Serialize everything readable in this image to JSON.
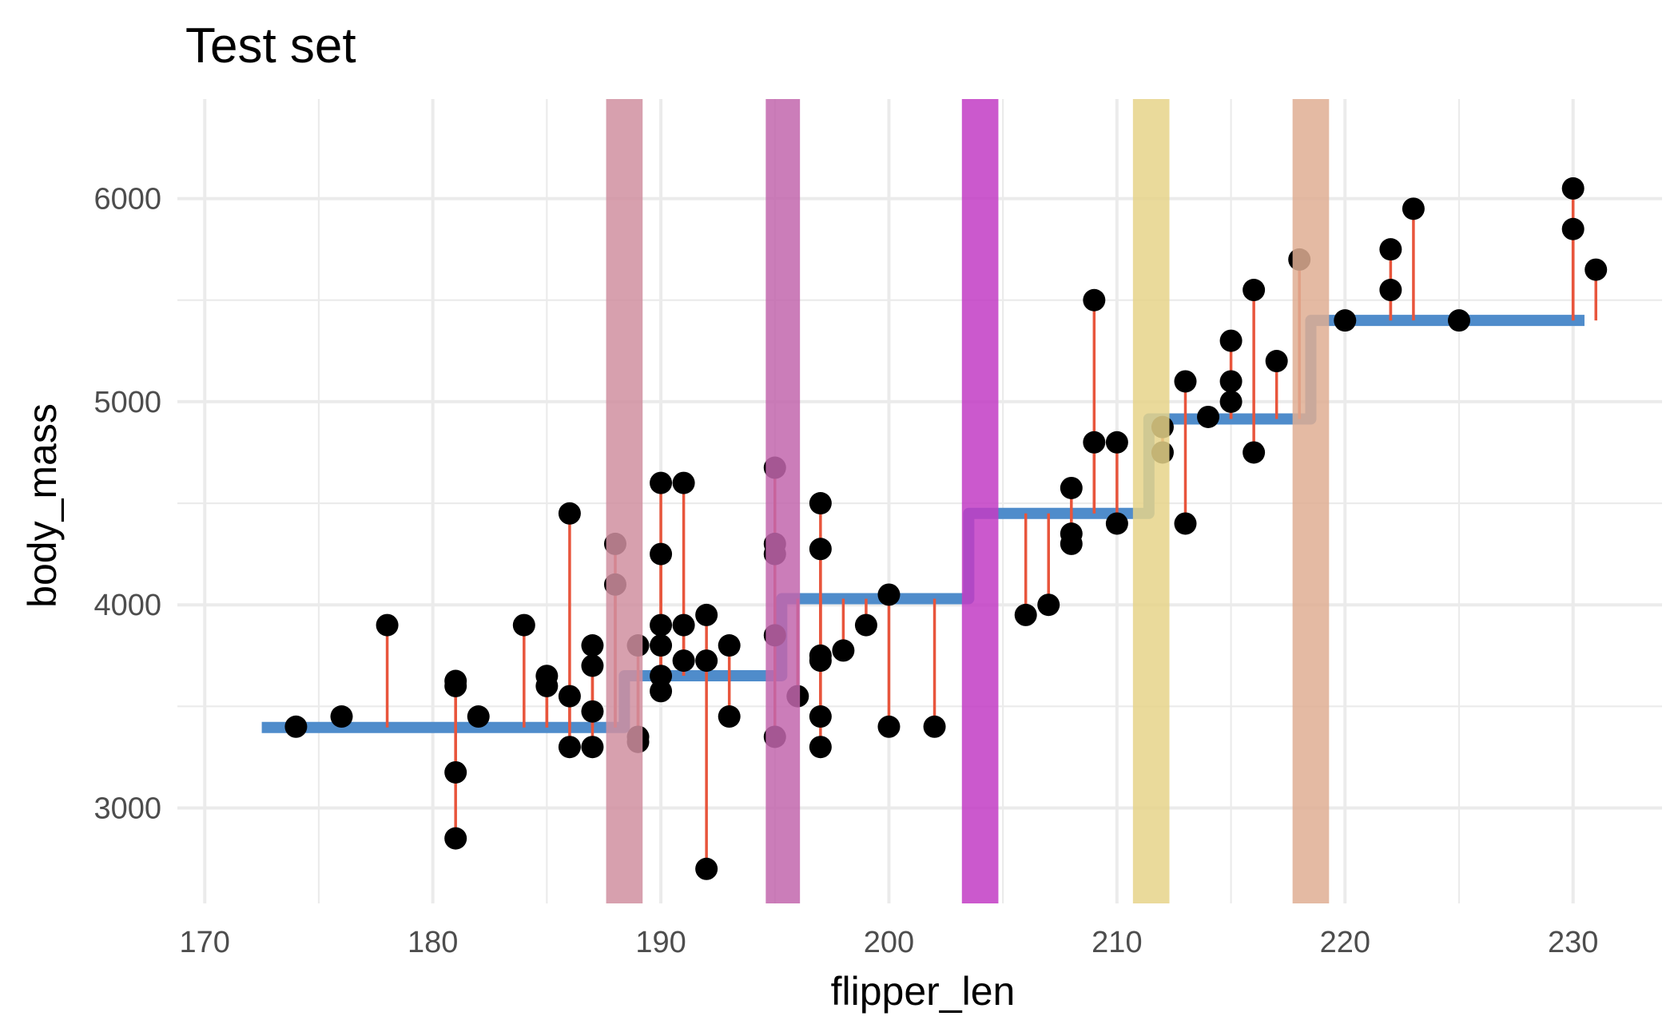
{
  "chart_data": {
    "type": "scatter",
    "title": "Test set",
    "xlabel": "flipper_len",
    "ylabel": "body_mass",
    "xlim": [
      168.8,
      233.9
    ],
    "ylim": [
      2530,
      6490
    ],
    "x_ticks": [
      170,
      180,
      190,
      200,
      210,
      220,
      230
    ],
    "y_ticks": [
      3000,
      4000,
      5000,
      6000
    ],
    "grid": true,
    "legend": "none",
    "colors": {
      "points": "#000000",
      "step": "#4f8ccb",
      "residuals": "#e8553c"
    },
    "points": [
      [
        174,
        3400
      ],
      [
        176,
        3450
      ],
      [
        178,
        3900
      ],
      [
        181,
        3625
      ],
      [
        181,
        3600
      ],
      [
        181,
        3175
      ],
      [
        181,
        2850
      ],
      [
        182,
        3450
      ],
      [
        184,
        3900
      ],
      [
        185,
        3650
      ],
      [
        185,
        3600
      ],
      [
        186,
        4450
      ],
      [
        186,
        3550
      ],
      [
        186,
        3300
      ],
      [
        187,
        3800
      ],
      [
        187,
        3700
      ],
      [
        187,
        3475
      ],
      [
        187,
        3300
      ],
      [
        188,
        4300
      ],
      [
        188,
        4100
      ],
      [
        189,
        3800
      ],
      [
        189,
        3350
      ],
      [
        189,
        3325
      ],
      [
        190,
        4600
      ],
      [
        190,
        4250
      ],
      [
        190,
        3900
      ],
      [
        190,
        3800
      ],
      [
        190,
        3650
      ],
      [
        190,
        3575
      ],
      [
        191,
        4600
      ],
      [
        191,
        3900
      ],
      [
        191,
        3725
      ],
      [
        192,
        3950
      ],
      [
        192,
        3725
      ],
      [
        192,
        2700
      ],
      [
        193,
        3800
      ],
      [
        193,
        3450
      ],
      [
        195,
        4675
      ],
      [
        195,
        4300
      ],
      [
        195,
        4250
      ],
      [
        195,
        3850
      ],
      [
        195,
        3350
      ],
      [
        196,
        3550
      ],
      [
        197,
        4500
      ],
      [
        197,
        4275
      ],
      [
        197,
        3750
      ],
      [
        197,
        3725
      ],
      [
        197,
        3450
      ],
      [
        197,
        3300
      ],
      [
        198,
        3775
      ],
      [
        199,
        3900
      ],
      [
        200,
        4050
      ],
      [
        200,
        3400
      ],
      [
        202,
        3400
      ],
      [
        206,
        3950
      ],
      [
        207,
        4000
      ],
      [
        208,
        4575
      ],
      [
        208,
        4350
      ],
      [
        208,
        4300
      ],
      [
        209,
        5500
      ],
      [
        209,
        4800
      ],
      [
        210,
        4800
      ],
      [
        210,
        4400
      ],
      [
        212,
        4875
      ],
      [
        212,
        4750
      ],
      [
        213,
        5100
      ],
      [
        213,
        4400
      ],
      [
        214,
        4925
      ],
      [
        215,
        5300
      ],
      [
        215,
        5100
      ],
      [
        215,
        5000
      ],
      [
        216,
        5550
      ],
      [
        216,
        4750
      ],
      [
        217,
        5200
      ],
      [
        218,
        5700
      ],
      [
        220,
        5400
      ],
      [
        222,
        5750
      ],
      [
        222,
        5550
      ],
      [
        223,
        5950
      ],
      [
        225,
        5400
      ],
      [
        230,
        6050
      ],
      [
        230,
        5850
      ],
      [
        231,
        5650
      ]
    ],
    "step_fit": {
      "x_start": 172.5,
      "x_end": 230.5,
      "breaks": [
        188.4,
        195.3,
        203.5,
        211.4,
        218.5
      ],
      "levels": [
        3396,
        3651,
        4030,
        4450,
        4915,
        5400
      ]
    },
    "bands": [
      {
        "x0": 187.6,
        "x1": 189.2,
        "color": "#d08fa0"
      },
      {
        "x0": 194.6,
        "x1": 196.1,
        "color": "#c266ad"
      },
      {
        "x0": 203.2,
        "x1": 204.8,
        "color": "#c23cc4"
      },
      {
        "x0": 210.7,
        "x1": 212.3,
        "color": "#e6d48a"
      },
      {
        "x0": 217.7,
        "x1": 219.3,
        "color": "#dfae93"
      }
    ]
  }
}
